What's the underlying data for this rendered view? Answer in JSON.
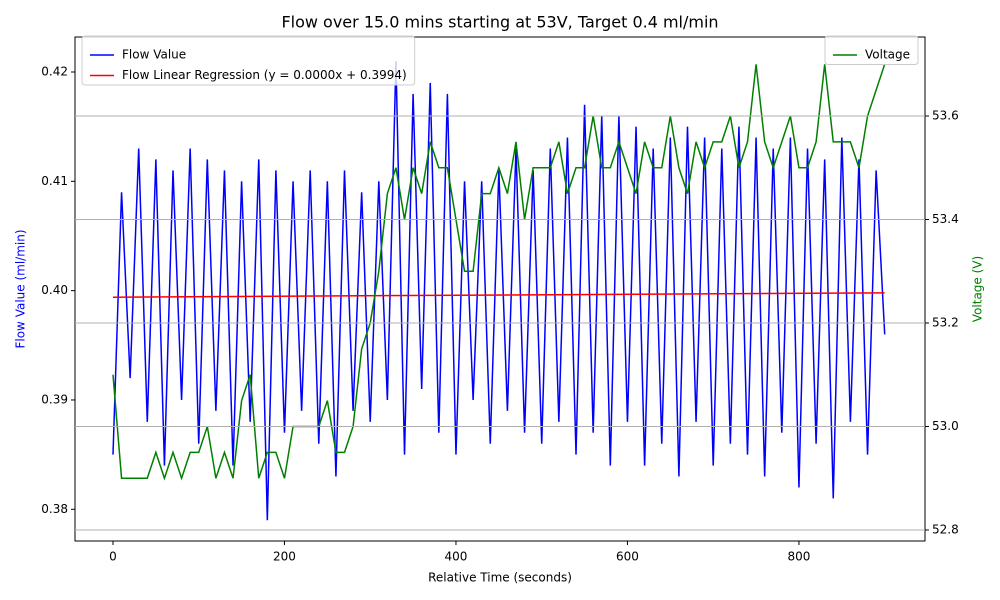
{
  "chart_data": {
    "type": "line",
    "title": "Flow over 15.0 mins starting at 53V, Target 0.4 ml/min",
    "x_label": "Relative Time (seconds)",
    "y_label": "Flow Value (ml/min)",
    "y2_label": "Voltage (V)",
    "y_color": "#0000ff",
    "y2_color": "#008000",
    "x": [
      0,
      10,
      20,
      30,
      40,
      50,
      60,
      70,
      80,
      90,
      100,
      110,
      120,
      130,
      140,
      150,
      160,
      170,
      180,
      190,
      200,
      210,
      220,
      230,
      240,
      250,
      260,
      270,
      280,
      290,
      300,
      310,
      320,
      330,
      340,
      350,
      360,
      370,
      380,
      390,
      400,
      410,
      420,
      430,
      440,
      450,
      460,
      470,
      480,
      490,
      500,
      510,
      520,
      530,
      540,
      550,
      560,
      570,
      580,
      590,
      600,
      610,
      620,
      630,
      640,
      650,
      660,
      670,
      680,
      690,
      700,
      710,
      720,
      730,
      740,
      750,
      760,
      770,
      780,
      790,
      800,
      810,
      820,
      830,
      840,
      850,
      860,
      870,
      880,
      890,
      900
    ],
    "series": [
      {
        "name": "Flow Value",
        "color": "#0000ff",
        "values": [
          0.385,
          0.409,
          0.392,
          0.413,
          0.388,
          0.412,
          0.384,
          0.411,
          0.39,
          0.413,
          0.386,
          0.412,
          0.389,
          0.411,
          0.384,
          0.41,
          0.388,
          0.412,
          0.379,
          0.411,
          0.387,
          0.41,
          0.389,
          0.411,
          0.386,
          0.41,
          0.383,
          0.411,
          0.389,
          0.409,
          0.388,
          0.41,
          0.39,
          0.421,
          0.385,
          0.418,
          0.391,
          0.419,
          0.387,
          0.418,
          0.385,
          0.41,
          0.39,
          0.41,
          0.386,
          0.411,
          0.389,
          0.413,
          0.387,
          0.411,
          0.386,
          0.413,
          0.388,
          0.414,
          0.385,
          0.417,
          0.387,
          0.416,
          0.384,
          0.416,
          0.388,
          0.415,
          0.384,
          0.413,
          0.386,
          0.414,
          0.383,
          0.415,
          0.388,
          0.414,
          0.384,
          0.413,
          0.386,
          0.415,
          0.385,
          0.414,
          0.383,
          0.413,
          0.387,
          0.414,
          0.382,
          0.413,
          0.386,
          0.412,
          0.381,
          0.414,
          0.388,
          0.412,
          0.385,
          0.411,
          0.396
        ]
      },
      {
        "name": "Flow Linear Regression (y = 0.0000x + 0.3994)",
        "color": "#ff0000",
        "x": [
          0,
          900
        ],
        "values": [
          0.3994,
          0.3998
        ]
      },
      {
        "name": "Voltage",
        "color": "#008000",
        "axis": "y2",
        "values": [
          53.1,
          52.9,
          52.9,
          52.9,
          52.9,
          52.95,
          52.9,
          52.95,
          52.9,
          52.95,
          52.95,
          53.0,
          52.9,
          52.95,
          52.9,
          53.05,
          53.1,
          52.9,
          52.95,
          52.95,
          52.9,
          53.0,
          53.0,
          53.0,
          53.0,
          53.05,
          52.95,
          52.95,
          53.0,
          53.15,
          53.2,
          53.3,
          53.45,
          53.5,
          53.4,
          53.5,
          53.45,
          53.55,
          53.5,
          53.5,
          53.4,
          53.3,
          53.3,
          53.45,
          53.45,
          53.5,
          53.45,
          53.55,
          53.4,
          53.5,
          53.5,
          53.5,
          53.55,
          53.45,
          53.5,
          53.5,
          53.6,
          53.5,
          53.5,
          53.55,
          53.5,
          53.45,
          53.55,
          53.5,
          53.5,
          53.6,
          53.5,
          53.45,
          53.55,
          53.5,
          53.55,
          53.55,
          53.6,
          53.5,
          53.55,
          53.7,
          53.55,
          53.5,
          53.55,
          53.6,
          53.5,
          53.5,
          53.55,
          53.7,
          53.55,
          53.55,
          53.55,
          53.5,
          53.6,
          53.65,
          53.7
        ]
      }
    ],
    "xlim": [
      -44.3,
      947
    ],
    "xticks": [
      0,
      200,
      400,
      600,
      800
    ],
    "ylim": [
      0.3771,
      0.4232
    ],
    "yticks": [
      0.38,
      0.39,
      {
        "value": 0.4,
        "label": "0.40"
      },
      0.41,
      0.42
    ],
    "y2lim": [
      52.7787,
      53.7527
    ],
    "y2ticks": [
      52.8,
      {
        "value": 53.0,
        "label": "53.0"
      },
      53.2,
      53.4,
      53.6
    ],
    "grid": "y2",
    "legend": "upper left",
    "y2_legend": "upper right"
  }
}
